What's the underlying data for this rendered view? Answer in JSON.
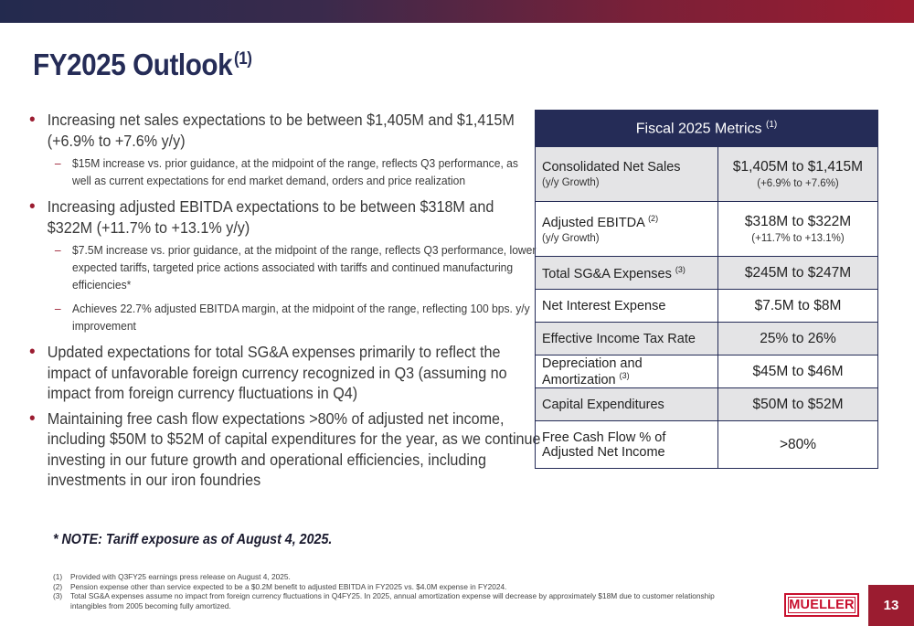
{
  "title": {
    "text": "FY2025 Outlook",
    "sup": "(1)"
  },
  "bullets": [
    {
      "text": "Increasing net sales expectations to be between $1,405M and $1,415M (+6.9% to +7.6% y/y)",
      "subs": [
        "$15M increase vs. prior guidance, at the midpoint of the range, reflects Q3 performance, as well as current expectations for end market demand, orders and price realization"
      ]
    },
    {
      "text": "Increasing adjusted EBITDA expectations to be between $318M and $322M (+11.7% to +13.1% y/y)",
      "subs": [
        "$7.5M increase vs. prior guidance, at the midpoint of the range, reflects Q3 performance, lower expected tariffs, targeted price actions associated with tariffs and continued manufacturing efficiencies*",
        "Achieves 22.7% adjusted EBITDA margin, at the midpoint of the range, reflecting 100 bps. y/y improvement"
      ]
    },
    {
      "text": "Updated expectations for total SG&A expenses primarily to reflect the impact of unfavorable foreign currency recognized in Q3 (assuming no impact from foreign currency fluctuations in Q4)",
      "subs": []
    },
    {
      "text": "Maintaining free cash flow expectations >80% of adjusted net income, including $50M to $52M of capital expenditures for the year, as we continue investing in our future growth and operational efficiencies, including investments in our iron foundries",
      "subs": []
    }
  ],
  "note": "*  NOTE:  Tariff exposure as of August 4, 2025.",
  "table": {
    "header": "Fiscal 2025 Metrics",
    "header_sup": "(1)",
    "rows": [
      {
        "label": "Consolidated Net Sales",
        "sup": "",
        "sublabel": "(y/y Growth)",
        "value": "$1,405M to $1,415M",
        "subvalue": "(+6.9% to +7.6%)"
      },
      {
        "label": "Adjusted EBITDA",
        "sup": "(2)",
        "sublabel": "(y/y Growth)",
        "value": "$318M to $322M",
        "subvalue": "(+11.7% to +13.1%)"
      },
      {
        "label": "Total SG&A Expenses",
        "sup": "(3)",
        "sublabel": "",
        "value": "$245M to $247M",
        "subvalue": ""
      },
      {
        "label": "Net Interest Expense",
        "sup": "",
        "sublabel": "",
        "value": "$7.5M to $8M",
        "subvalue": ""
      },
      {
        "label": "Effective Income Tax Rate",
        "sup": "",
        "sublabel": "",
        "value": "25% to 26%",
        "subvalue": ""
      },
      {
        "label": "Depreciation and Amortization",
        "sup": "(3)",
        "sublabel": "",
        "value": "$45M to $46M",
        "subvalue": ""
      },
      {
        "label": "Capital Expenditures",
        "sup": "",
        "sublabel": "",
        "value": "$50M to $52M",
        "subvalue": ""
      },
      {
        "label": "Free Cash Flow % of Adjusted Net Income",
        "sup": "",
        "sublabel": "",
        "value": ">80%",
        "subvalue": ""
      }
    ]
  },
  "footnotes": [
    {
      "num": "(1)",
      "text": "Provided with Q3FY25 earnings press release on August 4, 2025."
    },
    {
      "num": "(2)",
      "text": "Pension expense other than service expected to be a $0.2M benefit to adjusted EBITDA in FY2025 vs. $4.0M expense in FY2024."
    },
    {
      "num": "(3)",
      "text": "Total SG&A expenses assume no impact from foreign currency fluctuations in Q4FY25.  In 2025, annual amortization expense will decrease by approximately $18M due to customer relationship intangibles from 2005 becoming fully amortized."
    }
  ],
  "logo": "MUELLER",
  "page_number": "13",
  "colors": {
    "navy": "#252c57",
    "accent": "#9b1c30",
    "logo_red": "#c8102e"
  }
}
